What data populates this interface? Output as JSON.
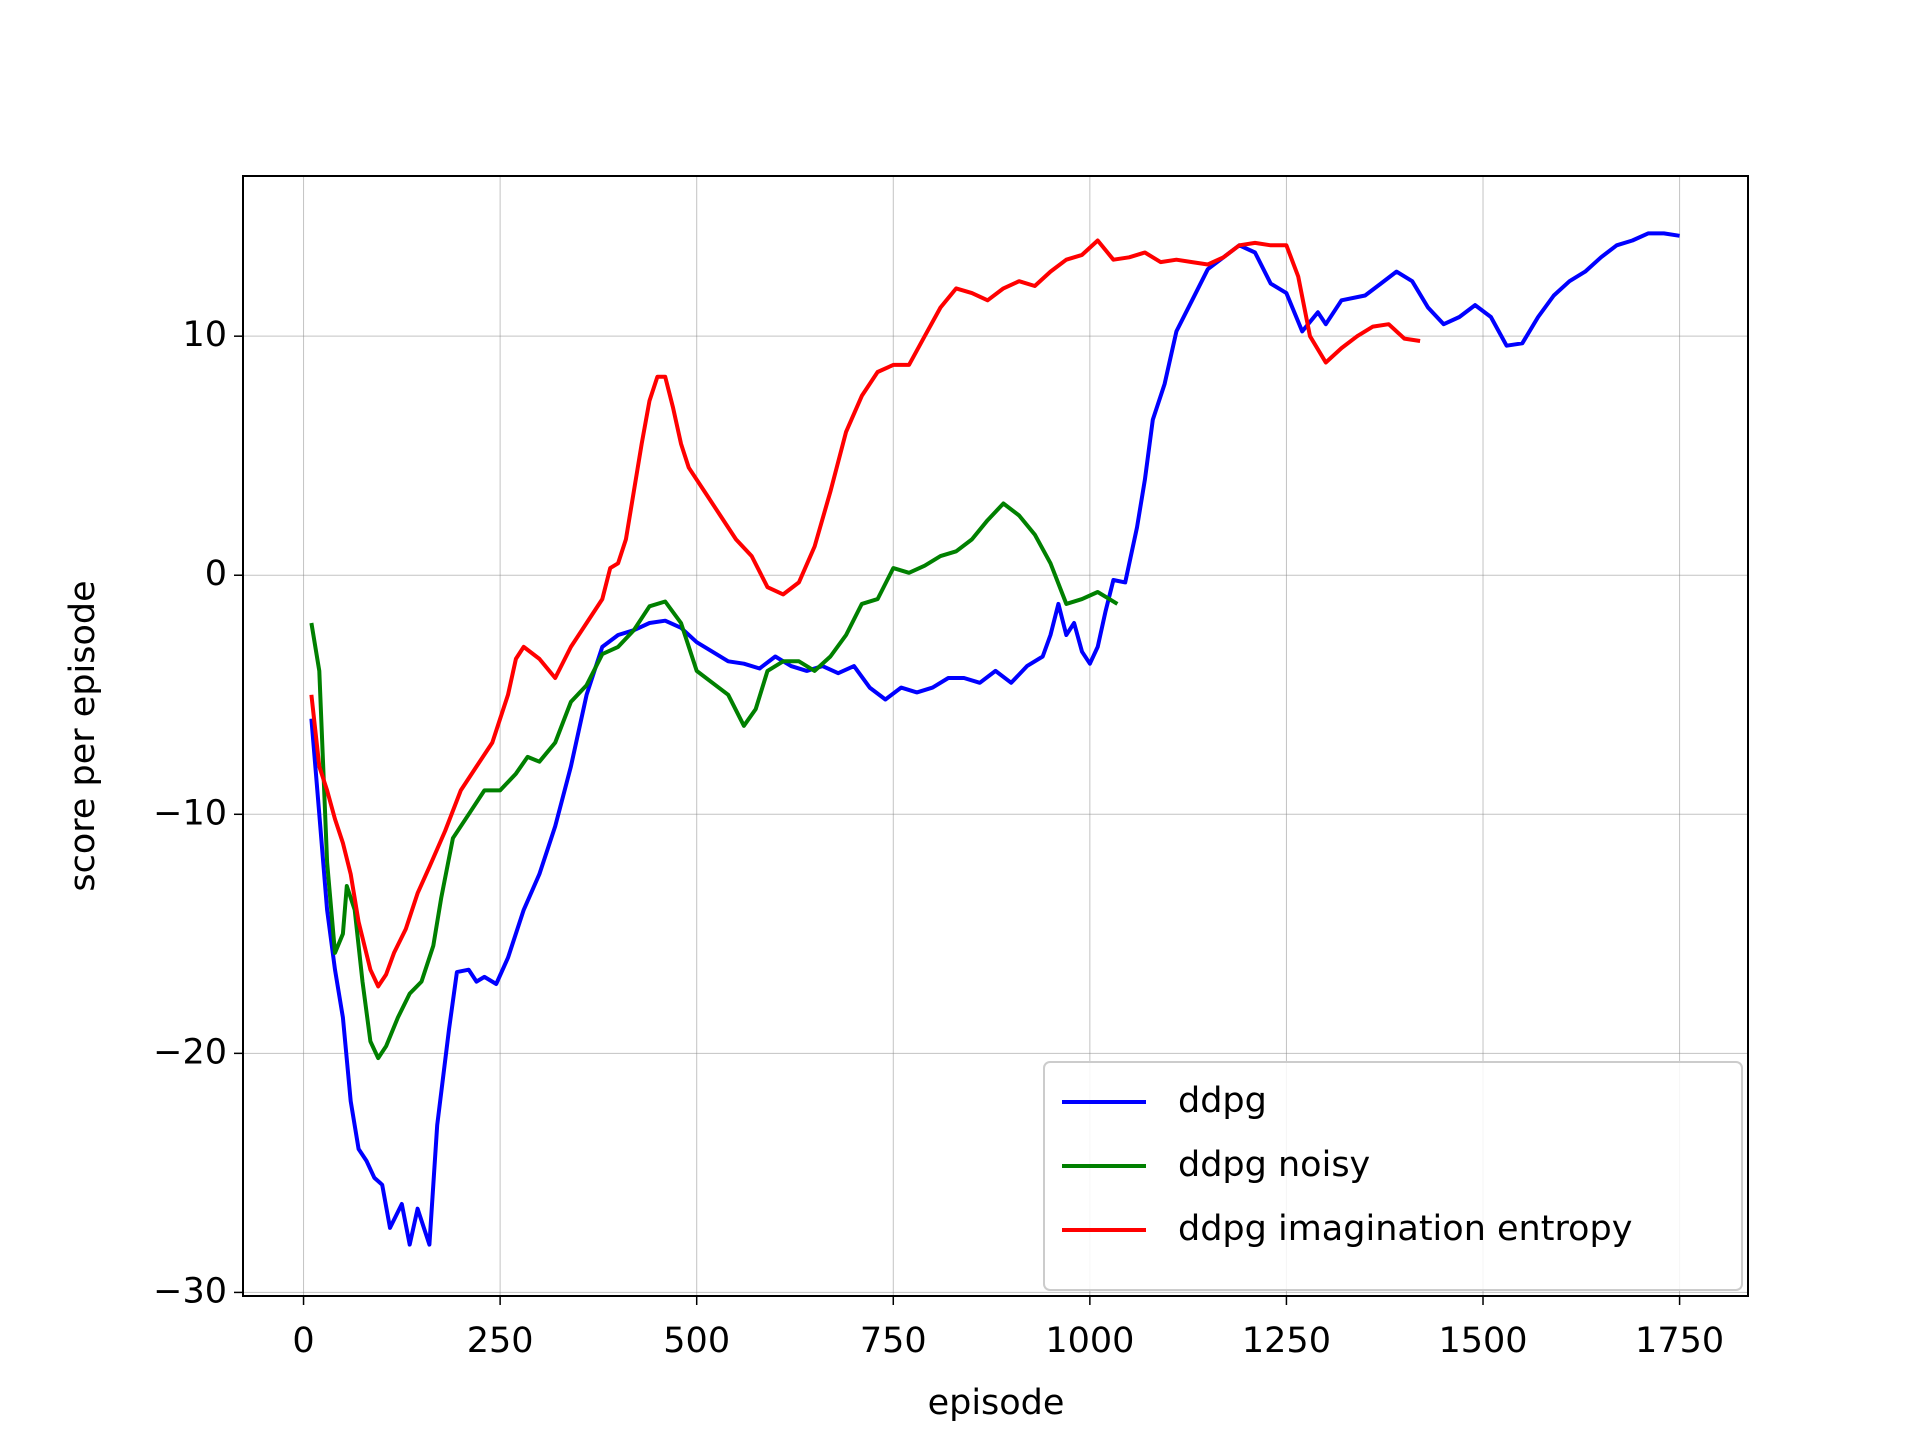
{
  "chart_data": {
    "type": "line",
    "xlabel": "episode",
    "ylabel": "score per episode",
    "xlim": [
      -77,
      1837
    ],
    "ylim": [
      -30.15,
      16.7
    ],
    "xticks": [
      0,
      250,
      500,
      750,
      1000,
      1250,
      1500,
      1750
    ],
    "yticks": [
      {
        "value": -30,
        "label": "−30"
      },
      {
        "value": -20,
        "label": "−20"
      },
      {
        "value": -10,
        "label": "−10"
      },
      0,
      10
    ],
    "grid": true,
    "legend": "lower right",
    "series": [
      {
        "name": "ddpg",
        "color": "#0000ff",
        "x": [
          10,
          20,
          30,
          40,
          50,
          60,
          70,
          80,
          90,
          100,
          110,
          125,
          135,
          145,
          160,
          170,
          185,
          195,
          210,
          220,
          230,
          245,
          260,
          280,
          300,
          320,
          340,
          360,
          380,
          400,
          420,
          440,
          460,
          480,
          500,
          520,
          540,
          560,
          580,
          600,
          620,
          640,
          660,
          680,
          700,
          720,
          740,
          760,
          780,
          800,
          820,
          840,
          860,
          880,
          900,
          920,
          940,
          950,
          960,
          970,
          980,
          990,
          1000,
          1010,
          1020,
          1030,
          1045,
          1060,
          1070,
          1080,
          1095,
          1110,
          1130,
          1150,
          1170,
          1190,
          1210,
          1230,
          1250,
          1270,
          1290,
          1300,
          1320,
          1350,
          1370,
          1390,
          1410,
          1430,
          1450,
          1470,
          1490,
          1510,
          1530,
          1550,
          1570,
          1590,
          1610,
          1630,
          1650,
          1670,
          1690,
          1710,
          1730,
          1750
        ],
        "values": [
          -6,
          -10,
          -14,
          -16.5,
          -18.5,
          -22,
          -24,
          -24.5,
          -25.2,
          -25.5,
          -27.3,
          -26.3,
          -28,
          -26.5,
          -28,
          -23,
          -19,
          -16.6,
          -16.5,
          -17,
          -16.8,
          -17.1,
          -16,
          -14,
          -12.5,
          -10.5,
          -8,
          -5,
          -3,
          -2.5,
          -2.3,
          -2,
          -1.9,
          -2.2,
          -2.8,
          -3.2,
          -3.6,
          -3.7,
          -3.9,
          -3.4,
          -3.8,
          -4,
          -3.8,
          -4.1,
          -3.8,
          -4.7,
          -5.2,
          -4.7,
          -4.9,
          -4.7,
          -4.3,
          -4.3,
          -4.5,
          -4,
          -4.5,
          -3.8,
          -3.4,
          -2.5,
          -1.2,
          -2.5,
          -2,
          -3.2,
          -3.7,
          -3,
          -1.5,
          -0.2,
          -0.3,
          2,
          4,
          6.5,
          8,
          10.2,
          11.5,
          12.8,
          13.3,
          13.8,
          13.5,
          12.2,
          11.8,
          10.2,
          11,
          10.5,
          11.5,
          11.7,
          12.2,
          12.7,
          12.3,
          11.2,
          10.5,
          10.8,
          11.3,
          10.8,
          9.6,
          9.7,
          10.8,
          11.7,
          12.3,
          12.7,
          13.3,
          13.8,
          14,
          14.3,
          14.3,
          14.2
        ]
      },
      {
        "name": "ddpg noisy",
        "color": "#008000",
        "x": [
          10,
          20,
          30,
          40,
          50,
          55,
          65,
          75,
          85,
          95,
          105,
          120,
          135,
          150,
          165,
          175,
          190,
          210,
          230,
          250,
          270,
          285,
          300,
          320,
          340,
          360,
          380,
          400,
          420,
          440,
          460,
          480,
          500,
          520,
          540,
          560,
          575,
          590,
          610,
          630,
          650,
          670,
          690,
          710,
          730,
          750,
          770,
          790,
          810,
          830,
          850,
          870,
          890,
          910,
          930,
          950,
          970,
          990,
          1010,
          1035
        ],
        "values": [
          -2,
          -4,
          -12,
          -15.8,
          -15,
          -13,
          -14,
          -17,
          -19.5,
          -20.2,
          -19.7,
          -18.5,
          -17.5,
          -17,
          -15.5,
          -13.5,
          -11,
          -10,
          -9,
          -9,
          -8.3,
          -7.6,
          -7.8,
          -7,
          -5.3,
          -4.6,
          -3.3,
          -3,
          -2.3,
          -1.3,
          -1.1,
          -2,
          -4,
          -4.5,
          -5,
          -6.3,
          -5.6,
          -4,
          -3.6,
          -3.6,
          -4,
          -3.4,
          -2.5,
          -1.2,
          -1,
          0.3,
          0.1,
          0.4,
          0.8,
          1,
          1.5,
          2.3,
          3,
          2.5,
          1.7,
          0.5,
          -1.2,
          -1,
          -0.7,
          -1.2
        ]
      },
      {
        "name": "ddpg imagination entropy",
        "color": "#ff0000",
        "x": [
          10,
          20,
          30,
          40,
          50,
          60,
          70,
          85,
          95,
          105,
          115,
          130,
          145,
          160,
          180,
          200,
          220,
          240,
          260,
          270,
          280,
          300,
          320,
          340,
          360,
          380,
          390,
          400,
          410,
          420,
          430,
          440,
          450,
          460,
          470,
          480,
          490,
          510,
          530,
          550,
          570,
          590,
          610,
          630,
          650,
          670,
          690,
          710,
          730,
          750,
          770,
          790,
          810,
          830,
          850,
          870,
          890,
          910,
          930,
          950,
          970,
          990,
          1010,
          1030,
          1050,
          1070,
          1090,
          1110,
          1130,
          1150,
          1170,
          1190,
          1210,
          1230,
          1250,
          1265,
          1280,
          1300,
          1320,
          1340,
          1360,
          1380,
          1400,
          1420
        ],
        "values": [
          -5,
          -8,
          -9,
          -10.2,
          -11.2,
          -12.5,
          -14.5,
          -16.5,
          -17.2,
          -16.7,
          -15.8,
          -14.8,
          -13.3,
          -12.2,
          -10.7,
          -9,
          -8,
          -7,
          -5,
          -3.5,
          -3,
          -3.5,
          -4.3,
          -3,
          -2,
          -1,
          0.3,
          0.5,
          1.5,
          3.5,
          5.5,
          7.3,
          8.3,
          8.3,
          7,
          5.5,
          4.5,
          3.5,
          2.5,
          1.5,
          0.8,
          -0.5,
          -0.8,
          -0.3,
          1.2,
          3.5,
          6,
          7.5,
          8.5,
          8.8,
          8.8,
          10,
          11.2,
          12,
          11.8,
          11.5,
          12,
          12.3,
          12.1,
          12.7,
          13.2,
          13.4,
          14,
          13.2,
          13.3,
          13.5,
          13.1,
          13.2,
          13.1,
          13,
          13.3,
          13.8,
          13.9,
          13.8,
          13.8,
          12.5,
          10,
          8.9,
          9.5,
          10,
          10.4,
          10.5,
          9.9,
          9.8
        ]
      }
    ]
  }
}
